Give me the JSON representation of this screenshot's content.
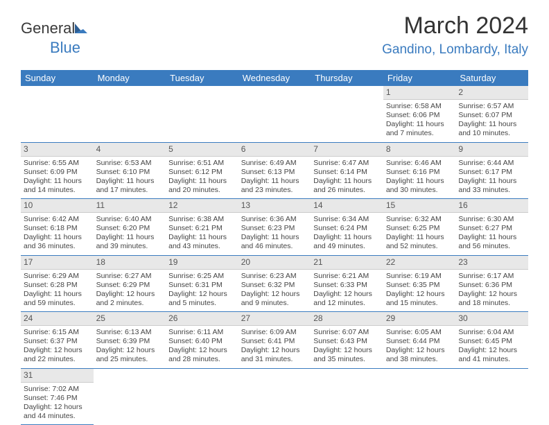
{
  "brand": {
    "part1": "General",
    "part2": "Blue"
  },
  "title": "March 2024",
  "location": "Gandino, Lombardy, Italy",
  "colors": {
    "header_bg": "#3a7bbf",
    "header_text": "#ffffff",
    "daynum_bg": "#e8e8e8",
    "row_border": "#3a7bbf",
    "body_text": "#444444",
    "location_text": "#3a7bbf",
    "title_text": "#333333"
  },
  "dayHeaders": [
    "Sunday",
    "Monday",
    "Tuesday",
    "Wednesday",
    "Thursday",
    "Friday",
    "Saturday"
  ],
  "weeks": [
    [
      {
        "n": "",
        "l1": "",
        "l2": "",
        "l3": "",
        "l4": "",
        "empty": true
      },
      {
        "n": "",
        "l1": "",
        "l2": "",
        "l3": "",
        "l4": "",
        "empty": true
      },
      {
        "n": "",
        "l1": "",
        "l2": "",
        "l3": "",
        "l4": "",
        "empty": true
      },
      {
        "n": "",
        "l1": "",
        "l2": "",
        "l3": "",
        "l4": "",
        "empty": true
      },
      {
        "n": "",
        "l1": "",
        "l2": "",
        "l3": "",
        "l4": "",
        "empty": true
      },
      {
        "n": "1",
        "l1": "Sunrise: 6:58 AM",
        "l2": "Sunset: 6:06 PM",
        "l3": "Daylight: 11 hours",
        "l4": "and 7 minutes."
      },
      {
        "n": "2",
        "l1": "Sunrise: 6:57 AM",
        "l2": "Sunset: 6:07 PM",
        "l3": "Daylight: 11 hours",
        "l4": "and 10 minutes."
      }
    ],
    [
      {
        "n": "3",
        "l1": "Sunrise: 6:55 AM",
        "l2": "Sunset: 6:09 PM",
        "l3": "Daylight: 11 hours",
        "l4": "and 14 minutes."
      },
      {
        "n": "4",
        "l1": "Sunrise: 6:53 AM",
        "l2": "Sunset: 6:10 PM",
        "l3": "Daylight: 11 hours",
        "l4": "and 17 minutes."
      },
      {
        "n": "5",
        "l1": "Sunrise: 6:51 AM",
        "l2": "Sunset: 6:12 PM",
        "l3": "Daylight: 11 hours",
        "l4": "and 20 minutes."
      },
      {
        "n": "6",
        "l1": "Sunrise: 6:49 AM",
        "l2": "Sunset: 6:13 PM",
        "l3": "Daylight: 11 hours",
        "l4": "and 23 minutes."
      },
      {
        "n": "7",
        "l1": "Sunrise: 6:47 AM",
        "l2": "Sunset: 6:14 PM",
        "l3": "Daylight: 11 hours",
        "l4": "and 26 minutes."
      },
      {
        "n": "8",
        "l1": "Sunrise: 6:46 AM",
        "l2": "Sunset: 6:16 PM",
        "l3": "Daylight: 11 hours",
        "l4": "and 30 minutes."
      },
      {
        "n": "9",
        "l1": "Sunrise: 6:44 AM",
        "l2": "Sunset: 6:17 PM",
        "l3": "Daylight: 11 hours",
        "l4": "and 33 minutes."
      }
    ],
    [
      {
        "n": "10",
        "l1": "Sunrise: 6:42 AM",
        "l2": "Sunset: 6:18 PM",
        "l3": "Daylight: 11 hours",
        "l4": "and 36 minutes."
      },
      {
        "n": "11",
        "l1": "Sunrise: 6:40 AM",
        "l2": "Sunset: 6:20 PM",
        "l3": "Daylight: 11 hours",
        "l4": "and 39 minutes."
      },
      {
        "n": "12",
        "l1": "Sunrise: 6:38 AM",
        "l2": "Sunset: 6:21 PM",
        "l3": "Daylight: 11 hours",
        "l4": "and 43 minutes."
      },
      {
        "n": "13",
        "l1": "Sunrise: 6:36 AM",
        "l2": "Sunset: 6:23 PM",
        "l3": "Daylight: 11 hours",
        "l4": "and 46 minutes."
      },
      {
        "n": "14",
        "l1": "Sunrise: 6:34 AM",
        "l2": "Sunset: 6:24 PM",
        "l3": "Daylight: 11 hours",
        "l4": "and 49 minutes."
      },
      {
        "n": "15",
        "l1": "Sunrise: 6:32 AM",
        "l2": "Sunset: 6:25 PM",
        "l3": "Daylight: 11 hours",
        "l4": "and 52 minutes."
      },
      {
        "n": "16",
        "l1": "Sunrise: 6:30 AM",
        "l2": "Sunset: 6:27 PM",
        "l3": "Daylight: 11 hours",
        "l4": "and 56 minutes."
      }
    ],
    [
      {
        "n": "17",
        "l1": "Sunrise: 6:29 AM",
        "l2": "Sunset: 6:28 PM",
        "l3": "Daylight: 11 hours",
        "l4": "and 59 minutes."
      },
      {
        "n": "18",
        "l1": "Sunrise: 6:27 AM",
        "l2": "Sunset: 6:29 PM",
        "l3": "Daylight: 12 hours",
        "l4": "and 2 minutes."
      },
      {
        "n": "19",
        "l1": "Sunrise: 6:25 AM",
        "l2": "Sunset: 6:31 PM",
        "l3": "Daylight: 12 hours",
        "l4": "and 5 minutes."
      },
      {
        "n": "20",
        "l1": "Sunrise: 6:23 AM",
        "l2": "Sunset: 6:32 PM",
        "l3": "Daylight: 12 hours",
        "l4": "and 9 minutes."
      },
      {
        "n": "21",
        "l1": "Sunrise: 6:21 AM",
        "l2": "Sunset: 6:33 PM",
        "l3": "Daylight: 12 hours",
        "l4": "and 12 minutes."
      },
      {
        "n": "22",
        "l1": "Sunrise: 6:19 AM",
        "l2": "Sunset: 6:35 PM",
        "l3": "Daylight: 12 hours",
        "l4": "and 15 minutes."
      },
      {
        "n": "23",
        "l1": "Sunrise: 6:17 AM",
        "l2": "Sunset: 6:36 PM",
        "l3": "Daylight: 12 hours",
        "l4": "and 18 minutes."
      }
    ],
    [
      {
        "n": "24",
        "l1": "Sunrise: 6:15 AM",
        "l2": "Sunset: 6:37 PM",
        "l3": "Daylight: 12 hours",
        "l4": "and 22 minutes."
      },
      {
        "n": "25",
        "l1": "Sunrise: 6:13 AM",
        "l2": "Sunset: 6:39 PM",
        "l3": "Daylight: 12 hours",
        "l4": "and 25 minutes."
      },
      {
        "n": "26",
        "l1": "Sunrise: 6:11 AM",
        "l2": "Sunset: 6:40 PM",
        "l3": "Daylight: 12 hours",
        "l4": "and 28 minutes."
      },
      {
        "n": "27",
        "l1": "Sunrise: 6:09 AM",
        "l2": "Sunset: 6:41 PM",
        "l3": "Daylight: 12 hours",
        "l4": "and 31 minutes."
      },
      {
        "n": "28",
        "l1": "Sunrise: 6:07 AM",
        "l2": "Sunset: 6:43 PM",
        "l3": "Daylight: 12 hours",
        "l4": "and 35 minutes."
      },
      {
        "n": "29",
        "l1": "Sunrise: 6:05 AM",
        "l2": "Sunset: 6:44 PM",
        "l3": "Daylight: 12 hours",
        "l4": "and 38 minutes."
      },
      {
        "n": "30",
        "l1": "Sunrise: 6:04 AM",
        "l2": "Sunset: 6:45 PM",
        "l3": "Daylight: 12 hours",
        "l4": "and 41 minutes."
      }
    ],
    [
      {
        "n": "31",
        "l1": "Sunrise: 7:02 AM",
        "l2": "Sunset: 7:46 PM",
        "l3": "Daylight: 12 hours",
        "l4": "and 44 minutes."
      },
      {
        "n": "",
        "l1": "",
        "l2": "",
        "l3": "",
        "l4": "",
        "empty": true
      },
      {
        "n": "",
        "l1": "",
        "l2": "",
        "l3": "",
        "l4": "",
        "empty": true
      },
      {
        "n": "",
        "l1": "",
        "l2": "",
        "l3": "",
        "l4": "",
        "empty": true
      },
      {
        "n": "",
        "l1": "",
        "l2": "",
        "l3": "",
        "l4": "",
        "empty": true
      },
      {
        "n": "",
        "l1": "",
        "l2": "",
        "l3": "",
        "l4": "",
        "empty": true
      },
      {
        "n": "",
        "l1": "",
        "l2": "",
        "l3": "",
        "l4": "",
        "empty": true
      }
    ]
  ]
}
